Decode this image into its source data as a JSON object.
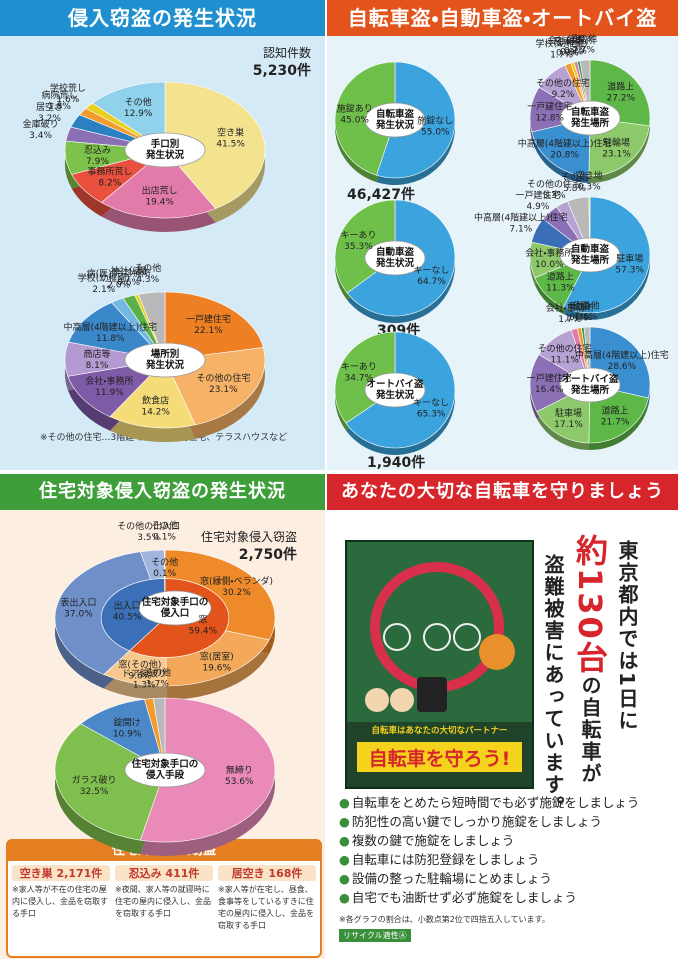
{
  "burglary": {
    "heading": "侵入窃盗の発生状況",
    "count_label": "認知件数",
    "count": "5,230件",
    "note": "※その他の住宅…3階建て以下の共同住宅、テラスハウスなど"
  },
  "vehicle": {
    "heading": "自転車盗・自動車盗・オートバイ盗"
  },
  "residential": {
    "heading": "住宅対象侵入窃盗の発生状況",
    "count_label": "住宅対象侵入窃盗",
    "count": "2,750件",
    "box": {
      "title": "住宅対象侵入窃盗",
      "items": [
        {
          "name": "空き巣 2,171件",
          "desc": "※家人等が不在の住宅の屋内に侵入し、金品を窃取する手口"
        },
        {
          "name": "忍込み 411件",
          "desc": "※夜間、家人等の就寝時に住宅の屋内に侵入し、金品を窃取する手口"
        },
        {
          "name": "居空き 168件",
          "desc": "※家人等が在宅し、昼食、食事等をしているすきに住宅の屋内に侵入し、金品を窃取する手口"
        }
      ]
    }
  },
  "bicycle": {
    "heading": "あなたの大切な自転車を守りましょう",
    "message": [
      "東京都内では1日に",
      "約130台",
      "の自転車が",
      "盗難被害にあっています。"
    ],
    "poster": {
      "tagline": "自転車はあなたの大切なパートナー",
      "headline": "自転車を守ろう!"
    },
    "bullets": [
      "自転車をとめたら短時間でも必ず施錠をしましょう",
      "防犯性の高い鍵でしっかり施錠をしましょう",
      "複数の鍵で施錠をしましょう",
      "自転車には防犯登録をしましょう",
      "設備の整った駐輪場にとめましょう",
      "自宅でも油断せず必ず施錠をしましょう"
    ],
    "note": "※各グラフの割合は、小数点第2位で四捨五入しています。",
    "recycle": "リサイクル適性Ⓐ"
  },
  "chart_data": [
    {
      "type": "pie",
      "title": [
        "手口別",
        "発生状況"
      ],
      "categories": [
        "空き巣",
        "出店荒し",
        "事務所荒し",
        "忍込み",
        "金庫破り",
        "居空き",
        "病院荒し",
        "学校荒し",
        "その他"
      ],
      "values": [
        41.5,
        19.4,
        8.2,
        7.9,
        3.4,
        3.2,
        1.8,
        1.6,
        12.9
      ],
      "value_labels": [
        "41.5%",
        "19.4%",
        "8.2%",
        "7.9%",
        "3.4%",
        "3.2%",
        "1.8%",
        "1.6%",
        "12.9%"
      ],
      "colors": [
        "#f3e38f",
        "#e27ba9",
        "#e9503e",
        "#7dc24b",
        "#8b70b6",
        "#2b80c1",
        "#f39b2d",
        "#e8d021",
        "#90d1eb"
      ]
    },
    {
      "type": "pie",
      "title": [
        "場所別",
        "発生状況"
      ],
      "categories": [
        "一戸建住宅",
        "その他の住宅",
        "飲食店",
        "会社・事務所",
        "商店等",
        "中高層(4階建以上)住宅",
        "学校(幼稚園)",
        "病(医)院・診療所",
        "神社仏閣",
        "その他"
      ],
      "values": [
        22.1,
        23.1,
        14.2,
        11.9,
        8.1,
        11.8,
        2.1,
        2.0,
        0.6,
        4.3
      ],
      "value_labels": [
        "22.1%",
        "23.1%",
        "14.2%",
        "11.9%",
        "8.1%",
        "11.8%",
        "2.1%",
        "2.0%",
        "0.6%",
        "4.3%"
      ],
      "colors": [
        "#ee7f22",
        "#f6b266",
        "#f5dc78",
        "#7f5aa6",
        "#b39bd1",
        "#3a88c9",
        "#72b8e3",
        "#5bb04a",
        "#e8d021",
        "#b9b9b9"
      ]
    },
    {
      "type": "pie",
      "title": [
        "自転車盗",
        "発生状況"
      ],
      "caption": "46,427件",
      "categories": [
        "施錠なし",
        "施錠あり"
      ],
      "values": [
        55.0,
        45.0
      ],
      "value_labels": [
        "55.0%",
        "45.0%"
      ],
      "colors": [
        "#3ba3dd",
        "#6fc04a"
      ]
    },
    {
      "type": "pie",
      "title": [
        "自転車盗",
        "発生場所"
      ],
      "categories": [
        "道路上",
        "駐輪場",
        "中高層(4階建以上)住宅",
        "一戸建住宅",
        "その他の住宅",
        "学校(幼稚園)",
        "駐車場",
        "会社・事務所",
        "公園",
        "その他"
      ],
      "values": [
        27.2,
        23.1,
        20.8,
        12.8,
        9.2,
        1.7,
        0.9,
        0.9,
        0.7,
        2.7
      ],
      "value_labels": [
        "27.2%",
        "23.1%",
        "20.8%",
        "12.8%",
        "9.2%",
        "1.7%",
        "0.9%",
        "0.9%",
        "0.7%",
        "2.7%"
      ],
      "colors": [
        "#5db848",
        "#8dc96b",
        "#3a8fd0",
        "#8b70b6",
        "#b6a3d4",
        "#f39b2d",
        "#e8d021",
        "#e27ba9",
        "#2e9c5a",
        "#b9b9b9"
      ]
    },
    {
      "type": "pie",
      "title": [
        "自動車盗",
        "発生状況"
      ],
      "caption": "309件",
      "categories": [
        "キーなし",
        "キーあり"
      ],
      "values": [
        64.7,
        35.3
      ],
      "value_labels": [
        "64.7%",
        "35.3%"
      ],
      "colors": [
        "#3ba3dd",
        "#6fc04a"
      ]
    },
    {
      "type": "pie",
      "title": [
        "自動車盗",
        "発生場所"
      ],
      "categories": [
        "駐車場",
        "道路上",
        "会社・事務所",
        "中高層(4階建以上)住宅",
        "一戸建住宅",
        "その他の住宅",
        "その他",
        "空き地"
      ],
      "values": [
        57.3,
        11.3,
        10.0,
        7.1,
        4.9,
        3.3,
        5.8,
        0.3
      ],
      "value_labels": [
        "57.3%",
        "11.3%",
        "10.0%",
        "7.1%",
        "4.9%",
        "3.3%",
        "5.8%",
        "0.3%"
      ],
      "colors": [
        "#3ba3dd",
        "#5db848",
        "#8dc96b",
        "#3a6fb8",
        "#8b70b6",
        "#b6a3d4",
        "#b9b9b9",
        "#e8d021"
      ]
    },
    {
      "type": "pie",
      "title": [
        "オートバイ盗",
        "発生状況"
      ],
      "caption": "1,940件",
      "categories": [
        "キーなし",
        "キーあり"
      ],
      "values": [
        65.3,
        34.7
      ],
      "value_labels": [
        "65.3%",
        "34.7%"
      ],
      "colors": [
        "#3ba3dd",
        "#6fc04a"
      ]
    },
    {
      "type": "pie",
      "title": [
        "オートバイ盗",
        "発生場所"
      ],
      "categories": [
        "中高層(4階建以上)住宅",
        "道路上",
        "駐車場",
        "一戸建住宅",
        "その他の住宅",
        "会社・事務所",
        "商店",
        "公園",
        "その他"
      ],
      "values": [
        28.6,
        21.7,
        17.1,
        16.4,
        11.1,
        1.7,
        1.1,
        0.7,
        1.6
      ],
      "value_labels": [
        "28.6%",
        "21.7%",
        "17.1%",
        "16.4%",
        "11.1%",
        "1.7%",
        "1.1%",
        "0.7%",
        "1.6%"
      ],
      "colors": [
        "#3a8fd0",
        "#5db848",
        "#8dc96b",
        "#8b70b6",
        "#b6a3d4",
        "#e27ba9",
        "#f39b2d",
        "#2e9c5a",
        "#b9b9b9"
      ]
    },
    {
      "type": "donut",
      "title": [
        "住宅対象手口の",
        "侵入口"
      ],
      "rings": [
        {
          "categories": [
            "窓(縁側・ベランダ)",
            "窓(居室)",
            "窓(その他)",
            "表出入口",
            "その他の出入口",
            "その他"
          ],
          "values": [
            30.2,
            19.6,
            9.6,
            37.0,
            3.5,
            0.1
          ],
          "value_labels": [
            "30.2%",
            "19.6%",
            "9.6%",
            "37.0%",
            "3.5%",
            "0.1%"
          ],
          "colors": [
            "#ef8a2a",
            "#f4a95a",
            "#f7c98f",
            "#6f8fc9",
            "#9fb6df",
            "#cccccc"
          ]
        },
        {
          "categories": [
            "窓",
            "出入口",
            "その他"
          ],
          "values": [
            59.4,
            40.5,
            0.1
          ],
          "value_labels": [
            "59.4%",
            "40.5%",
            "0.1%"
          ],
          "colors": [
            "#e2541b",
            "#3b6fb8",
            "#999999"
          ]
        }
      ]
    },
    {
      "type": "pie",
      "title": [
        "住宅対象手口の",
        "侵入手段"
      ],
      "categories": [
        "無締り",
        "ガラス破り",
        "錠開け",
        "ドア錠破り",
        "その他"
      ],
      "values": [
        53.6,
        32.5,
        10.9,
        1.3,
        1.7
      ],
      "value_labels": [
        "53.6%",
        "32.5%",
        "10.9%",
        "1.3%",
        "1.7%"
      ],
      "colors": [
        "#e98ab8",
        "#7fbf4d",
        "#4a88c9",
        "#f39b2d",
        "#b9b9b9"
      ]
    }
  ]
}
